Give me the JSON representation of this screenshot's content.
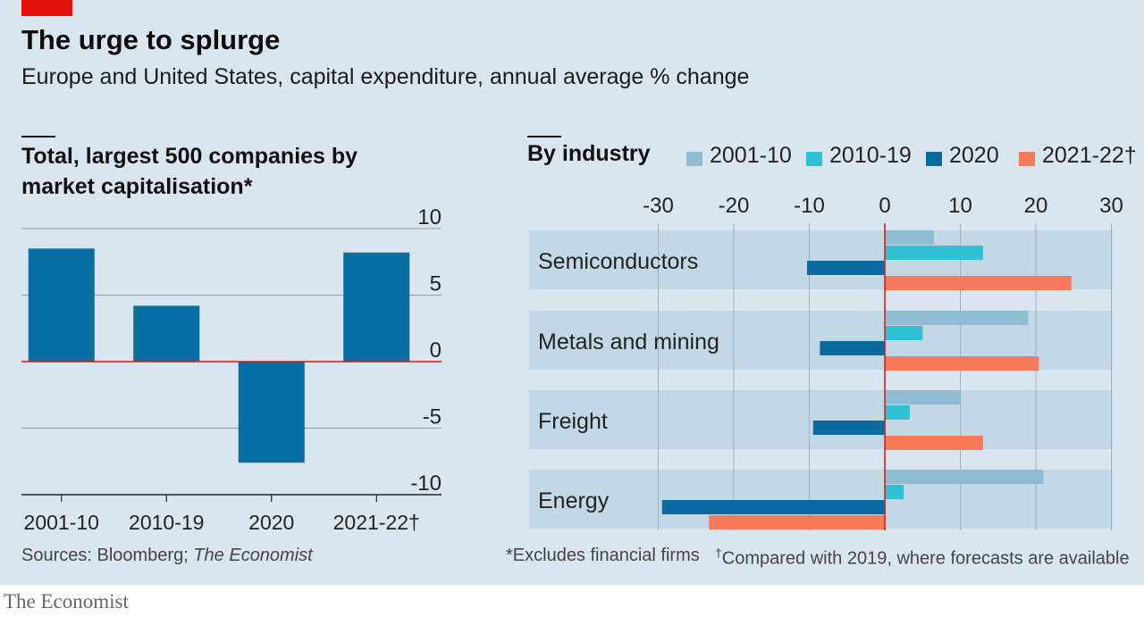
{
  "header": {
    "title": "The urge to splurge",
    "subtitle": "Europe and United States, capital expenditure, annual average % change"
  },
  "colors": {
    "background": "#d9e6ef",
    "accent_red": "#e3120b",
    "bar_blue": "#076fa2",
    "s_2001_10": "#8fbcd3",
    "s_2010_19": "#2fc1d3",
    "s_2020": "#0b6a9f",
    "s_2021_22": "#f97a5a",
    "band": "#c2d8e5"
  },
  "footer": {
    "sources_prefix": "Sources: Bloomberg; ",
    "sources_italic": "The Economist",
    "footnote_excl": "*Excludes financial firms",
    "footnote_dagger": "†",
    "footnote_compared": "Compared with 2019, where forecasts are available",
    "brand": "The Economist"
  },
  "chart_data": [
    {
      "type": "bar",
      "title": "Total, largest 500 companies by market capitalisation*",
      "categories": [
        "2001-10",
        "2010-19",
        "2020",
        "2021-22†"
      ],
      "values": [
        8.5,
        4.2,
        -7.6,
        8.2
      ],
      "ylim": [
        -10,
        10
      ],
      "yticks": [
        10,
        5,
        0,
        -5,
        -10
      ],
      "ytick_labels": [
        "10",
        "5",
        "0",
        "-5",
        "-10"
      ],
      "grid": true
    },
    {
      "type": "bar",
      "orientation": "horizontal",
      "title": "By industry",
      "categories": [
        "Semiconductors",
        "Metals and mining",
        "Freight",
        "Energy"
      ],
      "series": [
        {
          "name": "2001-10",
          "color": "#8fbcd3",
          "values": [
            6.5,
            19,
            10,
            21
          ]
        },
        {
          "name": "2010-19",
          "color": "#2fc1d3",
          "values": [
            13,
            5,
            3.3,
            2.5
          ]
        },
        {
          "name": "2020",
          "color": "#0b6a9f",
          "values": [
            -10.3,
            -8.6,
            -9.5,
            -29.5
          ]
        },
        {
          "name": "2021-22†",
          "color": "#f97a5a",
          "values": [
            24.7,
            20.4,
            13,
            -23.3
          ]
        }
      ],
      "xlim": [
        -30,
        30
      ],
      "xticks": [
        -30,
        -20,
        -10,
        0,
        10,
        20,
        30
      ],
      "xtick_labels": [
        "-30",
        "-20",
        "-10",
        "0",
        "10",
        "20",
        "30"
      ],
      "legend": "top",
      "grid": true
    }
  ]
}
